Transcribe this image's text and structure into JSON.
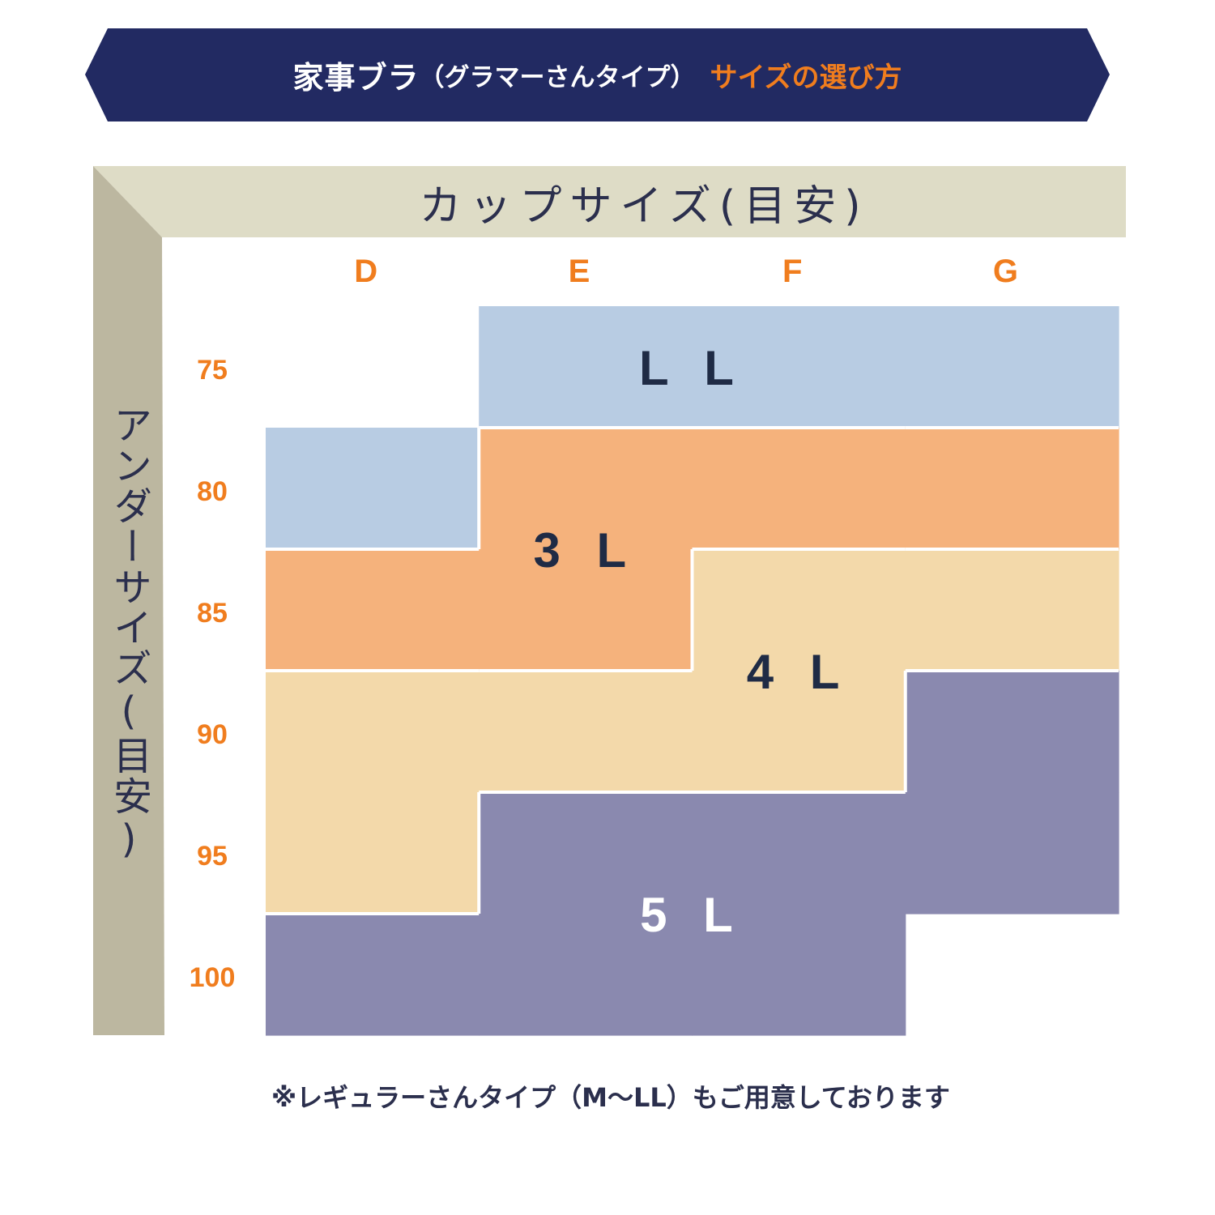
{
  "header": {
    "title_main": "家事ブラ",
    "title_paren": "（グラマーさんタイプ）",
    "title_accent": "サイズの選び方"
  },
  "footnote": "※レギュラーさんタイプ（M〜LL）もご用意しております",
  "colors": {
    "banner": "#222a62",
    "accent": "#f07d1e",
    "header_band": "#dedcc6",
    "side_band": "#bcb7a0",
    "text_dark": "#1f2b45",
    "LL": "#b8cce3",
    "3L": "#f5b27c",
    "4L": "#f3d9aa",
    "5L": "#8a89af"
  },
  "chart_data": {
    "type": "table",
    "x_axis_title": "カップサイズ(目安)",
    "y_axis_title": "アンダーサイズ(目安)",
    "x_categories": [
      "D",
      "E",
      "F",
      "G"
    ],
    "y_categories": [
      "75",
      "80",
      "85",
      "90",
      "95",
      "100"
    ],
    "size_labels": [
      "LL",
      "3L",
      "4L",
      "5L"
    ],
    "grid": [
      [
        "",
        "LL",
        "LL",
        "LL"
      ],
      [
        "LL",
        "3L",
        "3L",
        "3L"
      ],
      [
        "3L",
        "3L",
        "4L",
        "4L"
      ],
      [
        "4L",
        "4L",
        "4L",
        "5L"
      ],
      [
        "4L",
        "5L",
        "5L",
        "5L"
      ],
      [
        "5L",
        "5L",
        "5L",
        ""
      ]
    ]
  }
}
